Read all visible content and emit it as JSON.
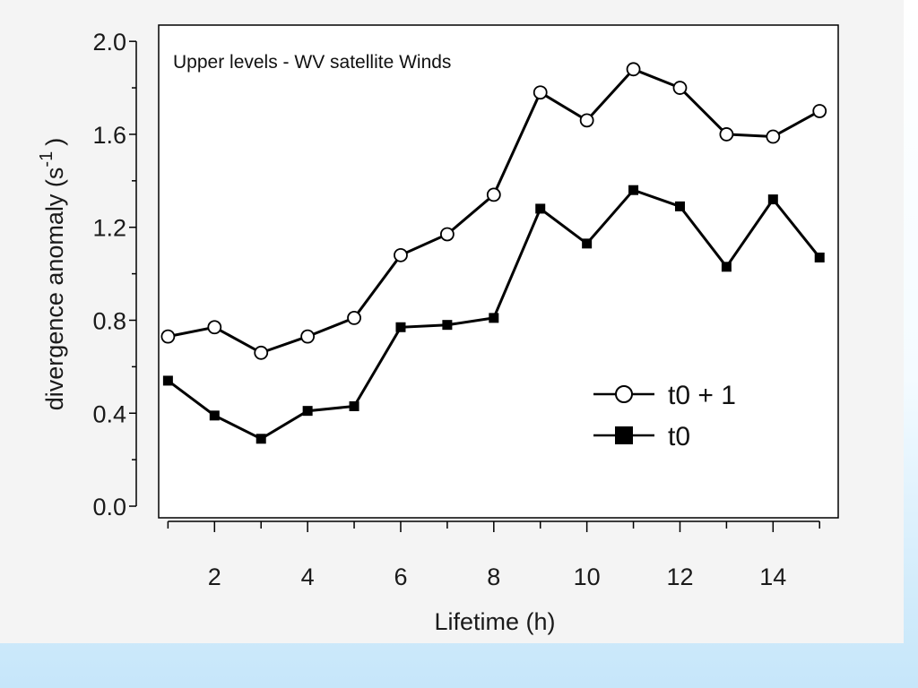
{
  "chart_data": {
    "type": "line",
    "title": "",
    "annotation": "Upper levels - WV satellite Winds",
    "xlabel": "Lifetime (h)",
    "ylabel_main": "divergence anomaly (s",
    "ylabel_sup": "-1",
    "ylabel_close": ")",
    "x": [
      1,
      2,
      3,
      4,
      5,
      6,
      7,
      8,
      9,
      10,
      11,
      12,
      13,
      14,
      15
    ],
    "xlim": [
      0.8,
      15.4
    ],
    "ylim": [
      -0.05,
      2.07
    ],
    "x_ticks": [
      2,
      4,
      6,
      8,
      10,
      12,
      14
    ],
    "x_tick_labels": [
      "2",
      "4",
      "6",
      "8",
      "10",
      "12",
      "14"
    ],
    "x_minor_ticks": [
      1,
      3,
      5,
      7,
      9,
      11,
      13,
      15
    ],
    "y_ticks": [
      0.0,
      0.4,
      0.8,
      1.2,
      1.6,
      2.0
    ],
    "y_tick_labels": [
      "0.0",
      "0.4",
      "0.8",
      "1.2",
      "1.6",
      "2.0"
    ],
    "y_minor_ticks": [
      0.2,
      0.6,
      1.0,
      1.4,
      1.8
    ],
    "grid": false,
    "legend_position": "lower-right",
    "series": [
      {
        "name": "t0 + 1",
        "marker": "circle-open",
        "color": "#000000",
        "values": [
          0.73,
          0.77,
          0.66,
          0.73,
          0.81,
          1.08,
          1.17,
          1.34,
          1.78,
          1.66,
          1.88,
          1.8,
          1.6,
          1.59,
          1.7
        ]
      },
      {
        "name": "t0",
        "marker": "square-filled",
        "color": "#000000",
        "values": [
          0.54,
          0.39,
          0.29,
          0.41,
          0.43,
          0.77,
          0.78,
          0.81,
          1.28,
          1.13,
          1.36,
          1.29,
          1.03,
          1.32,
          1.07
        ]
      }
    ]
  }
}
